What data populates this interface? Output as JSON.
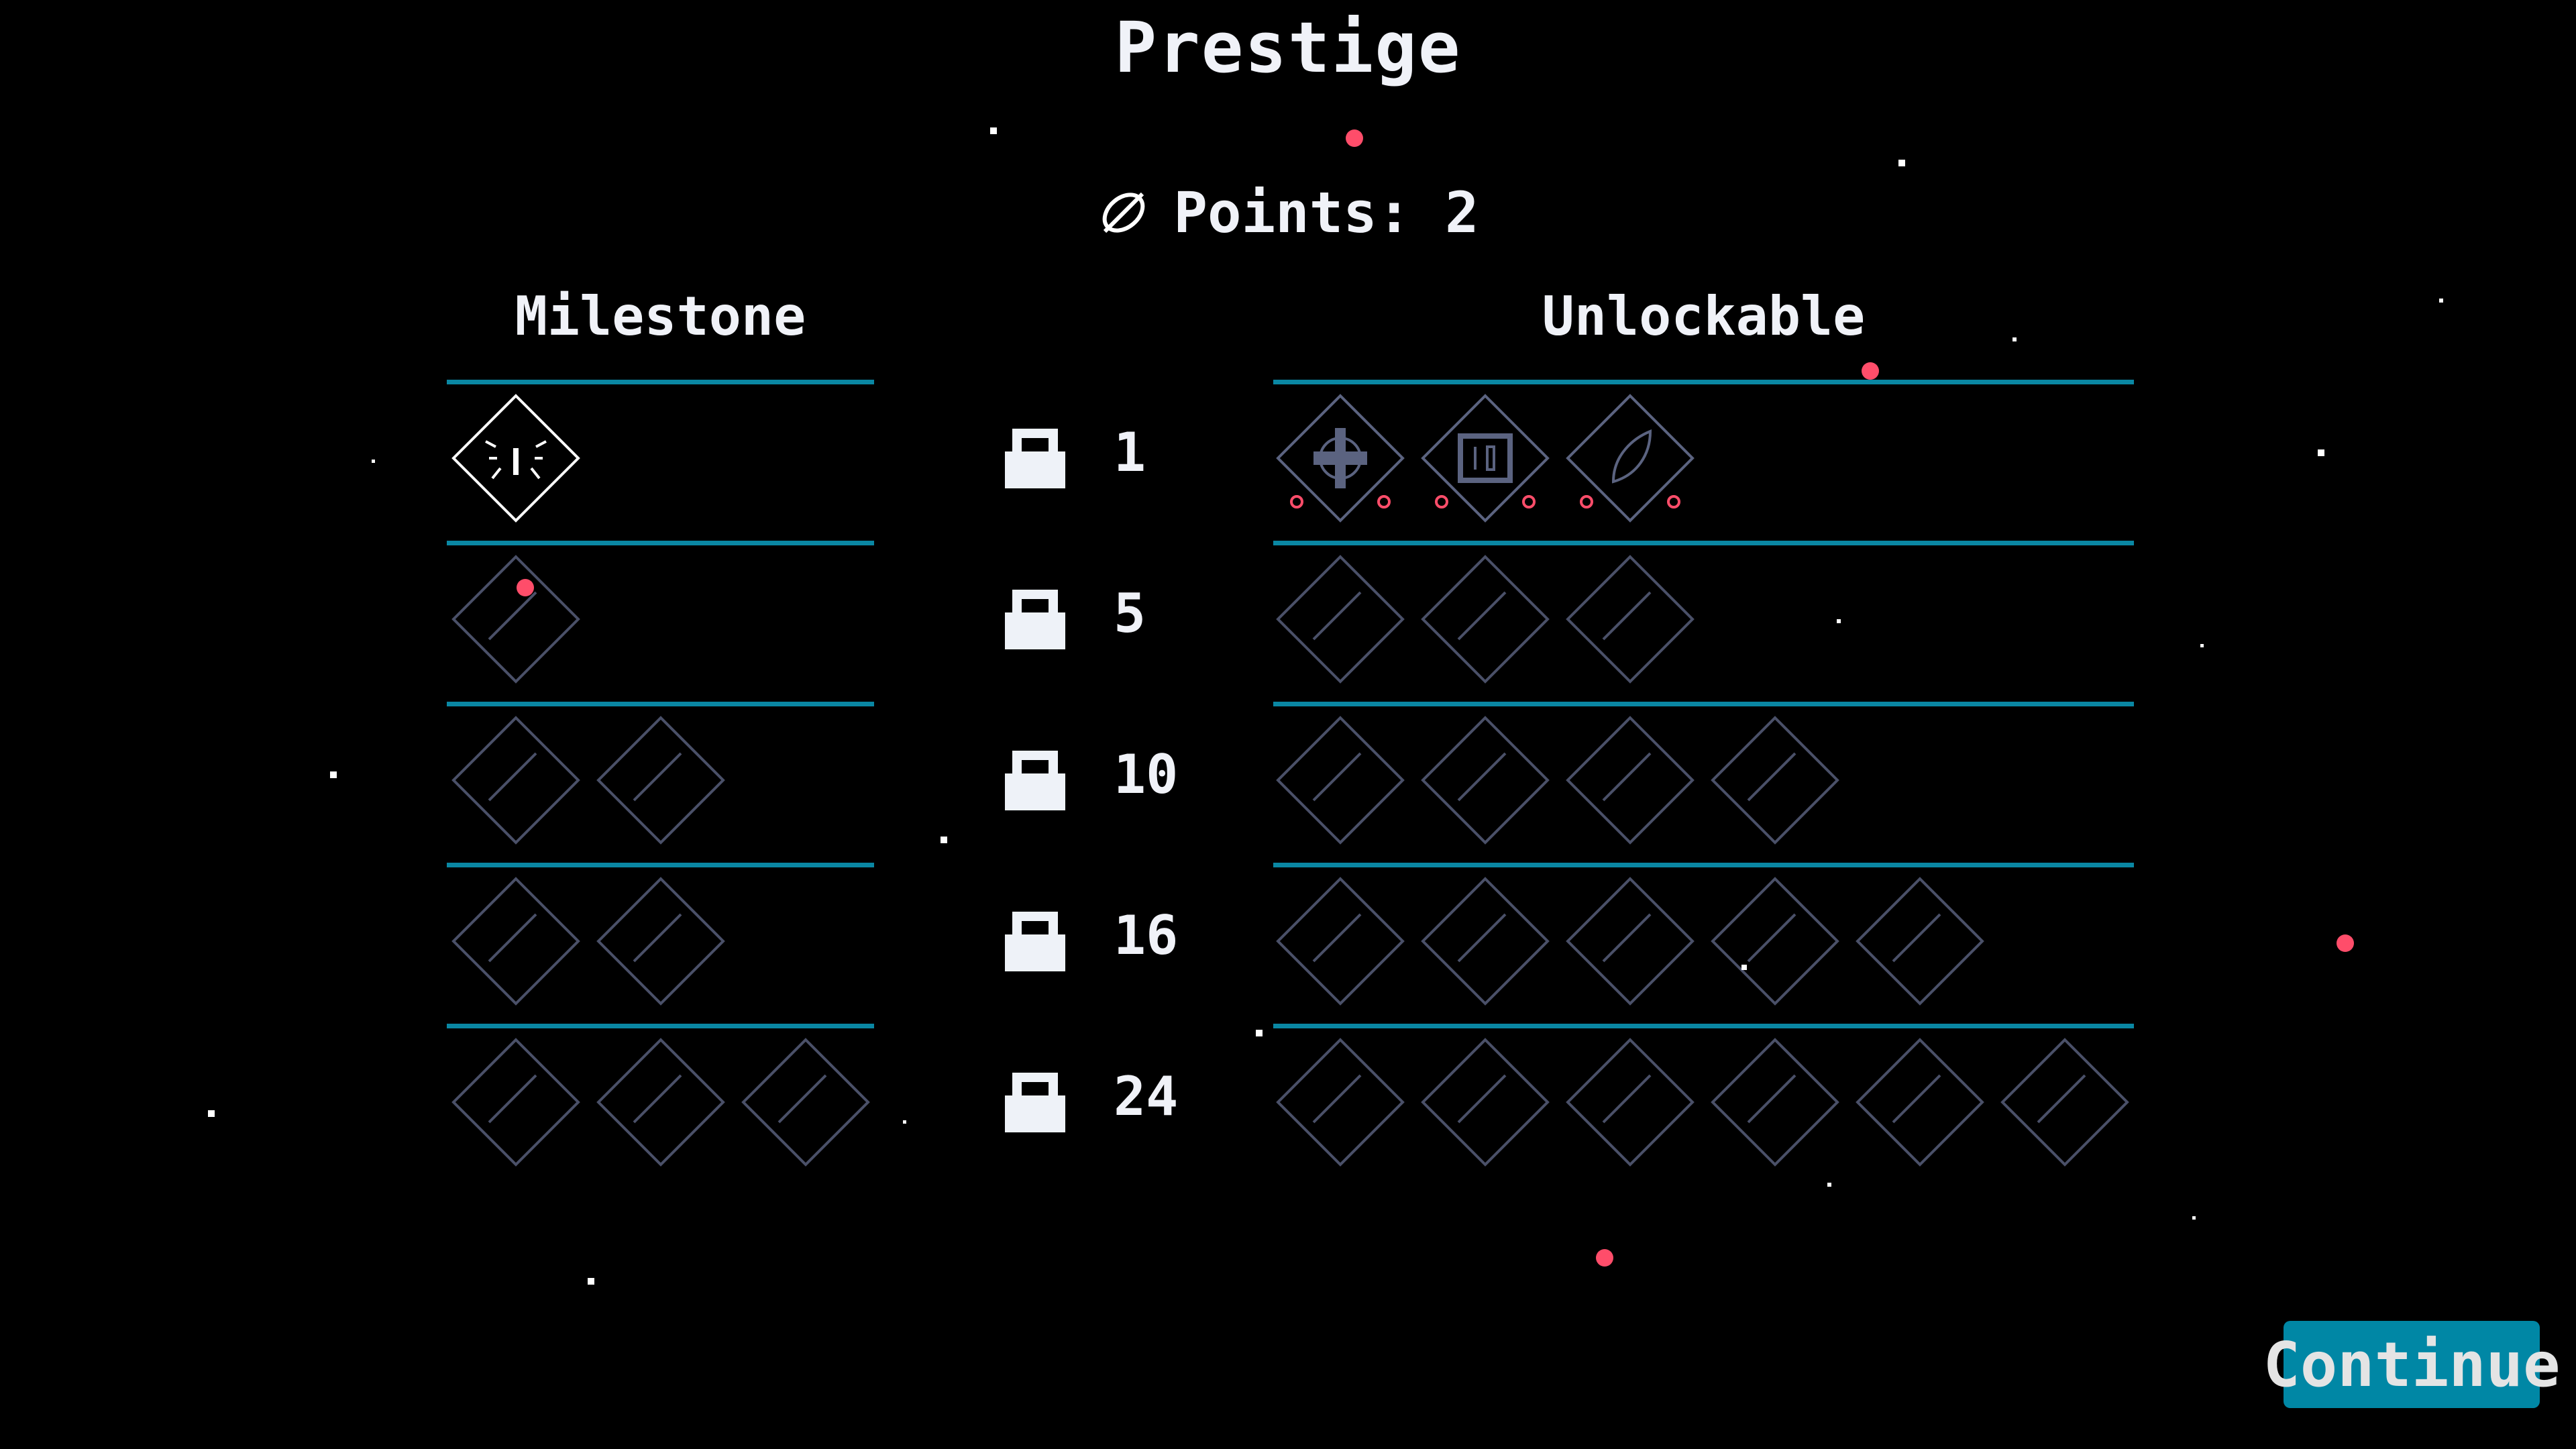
{
  "title": "Prestige",
  "points": {
    "icon": "leaf-slash-icon",
    "label": "Points: 2"
  },
  "columns": {
    "milestone": "Milestone",
    "unlockable": "Unlockable"
  },
  "rows": [
    {
      "threshold": "1",
      "milestones": [
        "cat-face-icon"
      ],
      "unlockables": [
        "crosshair-icon",
        "battery-icon",
        "leaf-icon"
      ]
    },
    {
      "threshold": "5",
      "milestones": [
        "locked"
      ],
      "unlockables": [
        "locked",
        "locked",
        "locked"
      ]
    },
    {
      "threshold": "10",
      "milestones": [
        "locked",
        "locked"
      ],
      "unlockables": [
        "locked",
        "locked",
        "locked",
        "locked"
      ]
    },
    {
      "threshold": "16",
      "milestones": [
        "locked",
        "locked"
      ],
      "unlockables": [
        "locked",
        "locked",
        "locked",
        "locked",
        "locked"
      ]
    },
    {
      "threshold": "24",
      "milestones": [
        "locked",
        "locked",
        "locked"
      ],
      "unlockables": [
        "locked",
        "locked",
        "locked",
        "locked",
        "locked",
        "locked"
      ]
    }
  ],
  "continue_label": "Continue",
  "colors": {
    "accent": "#0a87a3",
    "locked": "#4a5068",
    "unlocked_item": "#5b6380",
    "unlocked_milestone": "#ffffff",
    "red": "#ff4d6a"
  }
}
